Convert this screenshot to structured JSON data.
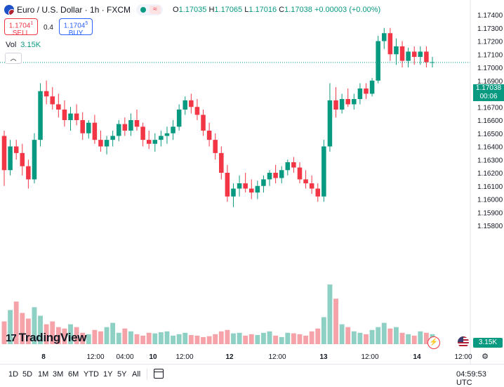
{
  "symbol": {
    "name": "Euro / U.S. Dollar",
    "interval": "1h",
    "exchange": "FXCM",
    "title": "Euro / U.S. Dollar · 1h · FXCM"
  },
  "ohlc": {
    "o_label": "O",
    "o": "1.17035",
    "h_label": "H",
    "h": "1.17065",
    "l_label": "L",
    "l": "1.17016",
    "c_label": "C",
    "c": "1.17038",
    "change": "+0.00003 (+0.00%)"
  },
  "trade": {
    "sell_price": "1.1704",
    "sell_sup": "1",
    "sell_label": "SELL",
    "spread": "0.4",
    "buy_price": "1.1704",
    "buy_sup": "5",
    "buy_label": "BUY"
  },
  "volume": {
    "label": "Vol",
    "value": "3.15K"
  },
  "price_tag": {
    "price": "1.17038",
    "countdown": "00:06"
  },
  "vol_tag": "3.15K",
  "logo": "TradingView",
  "logo_mark": "17",
  "time_labels": [
    "8",
    "12:00",
    "04:00",
    "10",
    "12:00",
    "12",
    "12:00",
    "13",
    "12:00",
    "14",
    "12:00"
  ],
  "timeframes": [
    "1D",
    "5D",
    "1M",
    "3M",
    "6M",
    "YTD",
    "1Y",
    "5Y",
    "All"
  ],
  "clock": "04:59:53 UTC",
  "colors": {
    "up": "#089981",
    "down": "#f23645",
    "up_vol": "#8fd0c4",
    "down_vol": "#f5a3a9",
    "accent": "#2962ff"
  },
  "chart_data": {
    "type": "candlestick",
    "title": "Euro / U.S. Dollar · 1h · FXCM",
    "y_ticks": [
      "1.17400",
      "1.17300",
      "1.17200",
      "1.17100",
      "1.17000",
      "1.16900",
      "1.16800",
      "1.16700",
      "1.16600",
      "1.16500",
      "1.16400",
      "1.16300",
      "1.16200",
      "1.16100",
      "1.16000",
      "1.15900",
      "1.15800"
    ],
    "ylim": [
      1.1575,
      1.1745
    ],
    "last_price": 1.17038,
    "candles": [
      [
        1.1648,
        1.1652,
        1.161,
        1.1622
      ],
      [
        1.1622,
        1.1645,
        1.1618,
        1.164
      ],
      [
        1.164,
        1.1645,
        1.163,
        1.1635
      ],
      [
        1.1635,
        1.1642,
        1.1618,
        1.1625
      ],
      [
        1.1625,
        1.163,
        1.1608,
        1.1615
      ],
      [
        1.1615,
        1.165,
        1.1612,
        1.1645
      ],
      [
        1.1645,
        1.1688,
        1.164,
        1.1682
      ],
      [
        1.1682,
        1.169,
        1.1672,
        1.1678
      ],
      [
        1.1678,
        1.1685,
        1.1668,
        1.1672
      ],
      [
        1.1672,
        1.168,
        1.1662,
        1.1668
      ],
      [
        1.1668,
        1.1675,
        1.1655,
        1.166
      ],
      [
        1.166,
        1.167,
        1.1652,
        1.1665
      ],
      [
        1.1665,
        1.1672,
        1.1656,
        1.166
      ],
      [
        1.166,
        1.1666,
        1.1645,
        1.165
      ],
      [
        1.165,
        1.166,
        1.1646,
        1.1658
      ],
      [
        1.1658,
        1.1664,
        1.1642,
        1.1645
      ],
      [
        1.1645,
        1.1652,
        1.1636,
        1.164
      ],
      [
        1.164,
        1.1648,
        1.1634,
        1.1645
      ],
      [
        1.1645,
        1.1652,
        1.164,
        1.1648
      ],
      [
        1.1648,
        1.166,
        1.1644,
        1.1657
      ],
      [
        1.1657,
        1.1662,
        1.1648,
        1.1652
      ],
      [
        1.1652,
        1.1665,
        1.1648,
        1.166
      ],
      [
        1.166,
        1.1668,
        1.1652,
        1.1655
      ],
      [
        1.1655,
        1.1658,
        1.164,
        1.1645
      ],
      [
        1.1645,
        1.1652,
        1.1638,
        1.1642
      ],
      [
        1.1642,
        1.165,
        1.1636,
        1.1645
      ],
      [
        1.1645,
        1.1652,
        1.164,
        1.1648
      ],
      [
        1.1648,
        1.1655,
        1.1642,
        1.165
      ],
      [
        1.165,
        1.166,
        1.1645,
        1.1655
      ],
      [
        1.1655,
        1.1672,
        1.1652,
        1.1668
      ],
      [
        1.1668,
        1.1678,
        1.1664,
        1.1675
      ],
      [
        1.1675,
        1.168,
        1.1665,
        1.167
      ],
      [
        1.167,
        1.1676,
        1.166,
        1.1664
      ],
      [
        1.1664,
        1.1668,
        1.1648,
        1.1652
      ],
      [
        1.1652,
        1.1658,
        1.164,
        1.1645
      ],
      [
        1.1645,
        1.165,
        1.163,
        1.1635
      ],
      [
        1.1635,
        1.164,
        1.1615,
        1.162
      ],
      [
        1.162,
        1.1626,
        1.1598,
        1.1602
      ],
      [
        1.1602,
        1.1612,
        1.1594,
        1.1608
      ],
      [
        1.1608,
        1.1618,
        1.1602,
        1.1612
      ],
      [
        1.1612,
        1.162,
        1.1605,
        1.1608
      ],
      [
        1.1608,
        1.1615,
        1.16,
        1.1605
      ],
      [
        1.1605,
        1.1614,
        1.16,
        1.161
      ],
      [
        1.161,
        1.1618,
        1.1605,
        1.1615
      ],
      [
        1.1615,
        1.1622,
        1.161,
        1.162
      ],
      [
        1.162,
        1.1626,
        1.1612,
        1.1616
      ],
      [
        1.1616,
        1.1625,
        1.1612,
        1.1622
      ],
      [
        1.1622,
        1.163,
        1.1618,
        1.1628
      ],
      [
        1.1628,
        1.1632,
        1.162,
        1.1624
      ],
      [
        1.1624,
        1.1628,
        1.1612,
        1.1615
      ],
      [
        1.1615,
        1.1622,
        1.1608,
        1.1612
      ],
      [
        1.1612,
        1.1618,
        1.1604,
        1.1608
      ],
      [
        1.1608,
        1.1612,
        1.1598,
        1.1602
      ],
      [
        1.1602,
        1.1645,
        1.1598,
        1.164
      ],
      [
        1.164,
        1.1688,
        1.1636,
        1.1675
      ],
      [
        1.1675,
        1.1685,
        1.1662,
        1.1668
      ],
      [
        1.1668,
        1.168,
        1.1665,
        1.1676
      ],
      [
        1.1676,
        1.1684,
        1.167,
        1.1672
      ],
      [
        1.1672,
        1.168,
        1.1668,
        1.1676
      ],
      [
        1.1676,
        1.1688,
        1.1672,
        1.1684
      ],
      [
        1.1684,
        1.1688,
        1.1676,
        1.168
      ],
      [
        1.168,
        1.1692,
        1.1678,
        1.169
      ],
      [
        1.169,
        1.1724,
        1.1688,
        1.172
      ],
      [
        1.172,
        1.173,
        1.1714,
        1.1726
      ],
      [
        1.1726,
        1.173,
        1.1705,
        1.171
      ],
      [
        1.171,
        1.1722,
        1.1702,
        1.1716
      ],
      [
        1.1716,
        1.172,
        1.17,
        1.1705
      ],
      [
        1.1705,
        1.1715,
        1.17,
        1.1712
      ],
      [
        1.1712,
        1.1716,
        1.1702,
        1.1708
      ],
      [
        1.1708,
        1.1716,
        1.1702,
        1.1712
      ],
      [
        1.1712,
        1.1716,
        1.17,
        1.1704
      ],
      [
        1.1704,
        1.1708,
        1.17,
        1.1704
      ]
    ],
    "volumes": [
      80,
      120,
      150,
      110,
      90,
      130,
      100,
      70,
      80,
      60,
      55,
      70,
      60,
      40,
      35,
      50,
      45,
      60,
      75,
      40,
      55,
      45,
      35,
      30,
      40,
      38,
      42,
      45,
      30,
      35,
      40,
      32,
      30,
      25,
      28,
      35,
      45,
      50,
      38,
      40,
      30,
      35,
      32,
      40,
      45,
      30,
      25,
      40,
      38,
      35,
      30,
      45,
      55,
      95,
      210,
      160,
      70,
      60,
      45,
      40,
      35,
      50,
      60,
      75,
      55,
      60,
      40,
      35,
      30,
      45,
      40,
      35
    ]
  }
}
